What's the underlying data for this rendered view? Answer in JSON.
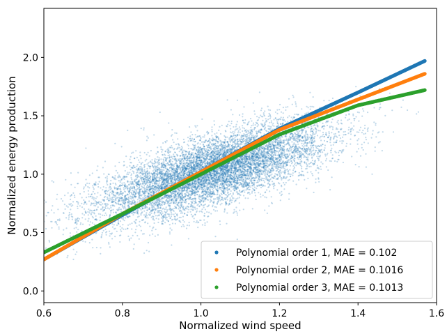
{
  "chart_data": {
    "type": "scatter",
    "xlabel": "Normalized wind speed",
    "ylabel": "Normalized energy production",
    "xlim": [
      0.6,
      1.6
    ],
    "ylim": [
      -0.1,
      2.42
    ],
    "xticks": [
      "0.6",
      "0.8",
      "1.0",
      "1.2",
      "1.4",
      "1.6"
    ],
    "yticks": [
      "0.0",
      "0.5",
      "1.0",
      "1.5",
      "2.0"
    ],
    "grid": false,
    "legend_position": "lower-right",
    "scatter": {
      "color": "#1f77b4",
      "x_range": [
        0.6,
        1.57
      ],
      "x_center": 1.03,
      "x_spread": 0.15,
      "y_relation": "y ≈ x",
      "y_noise": 0.15
    },
    "series": [
      {
        "name": "Polynomial order 1, MAE = 0.102",
        "color": "#1f77b4",
        "x": [
          0.6,
          0.8,
          1.0,
          1.2,
          1.4,
          1.57
        ],
        "y": [
          0.27,
          0.65,
          1.02,
          1.39,
          1.7,
          1.97
        ]
      },
      {
        "name": "Polynomial order 2, MAE = 0.1016",
        "color": "#ff7f0e",
        "x": [
          0.6,
          0.8,
          1.0,
          1.2,
          1.4,
          1.57
        ],
        "y": [
          0.27,
          0.66,
          1.02,
          1.38,
          1.64,
          1.86
        ]
      },
      {
        "name": "Polynomial order 3, MAE = 0.1013",
        "color": "#2ca02c",
        "x": [
          0.6,
          0.8,
          1.0,
          1.2,
          1.4,
          1.57
        ],
        "y": [
          0.33,
          0.66,
          1.0,
          1.34,
          1.59,
          1.72
        ]
      }
    ]
  }
}
